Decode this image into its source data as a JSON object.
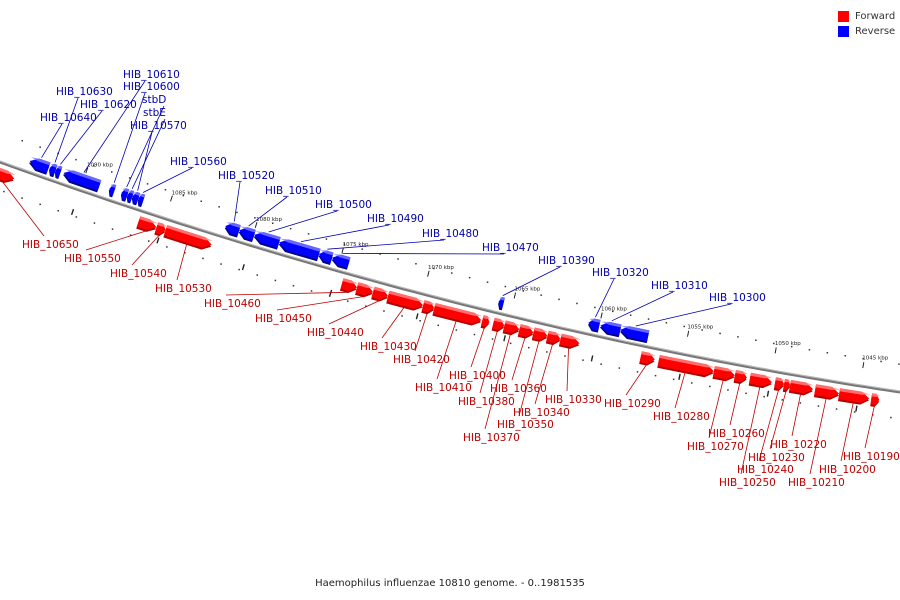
{
  "legend": {
    "forward_label": "Forward",
    "reverse_label": "Reverse",
    "forward_color": "#ff0000",
    "reverse_color": "#0000ff"
  },
  "caption": "Haemophilus influenzae 10810 genome. - 0..1981535",
  "colors": {
    "forward": "#ff0000",
    "forward_top": "#ff8888",
    "forward_dark": "#b30000",
    "reverse": "#0000ff",
    "reverse_top": "#7f7fff",
    "reverse_dark": "#00008c",
    "backbone": "#777777",
    "forward_label": "#bb0000",
    "reverse_label": "#0000aa"
  },
  "scale": {
    "unit": "kbp",
    "ticks": [
      "1090 kbp",
      "1085 kbp",
      "1080 kbp",
      "1075 kbp",
      "1070 kbp",
      "1065 kbp",
      "1060 kbp",
      "1055 kbp",
      "1050 kbp",
      "1045 kbp"
    ]
  },
  "reverse_genes": [
    "HIB_10640",
    "HIB_10630",
    "HIB_10620",
    "HIB_10610",
    "HIB_10600",
    "stbD",
    "stbE",
    "HIB_10570",
    "HIB_10560",
    "HIB_10520",
    "HIB_10510",
    "HIB_10500",
    "HIB_10490",
    "HIB_10480",
    "HIB_10470",
    "HIB_10390",
    "HIB_10320",
    "HIB_10310",
    "HIB_10300"
  ],
  "forward_genes": [
    "HIB_10650",
    "HIB_10550",
    "HIB_10540",
    "HIB_10530",
    "HIB_10460",
    "HIB_10450",
    "HIB_10440",
    "HIB_10430",
    "HIB_10420",
    "HIB_10410",
    "HIB_10400",
    "HIB_10380",
    "HIB_10370",
    "HIB_10360",
    "HIB_10350",
    "HIB_10340",
    "HIB_10330",
    "HIB_10290",
    "HIB_10280",
    "HIB_10270",
    "HIB_10260",
    "HIB_10250",
    "HIB_10240",
    "HIB_10230",
    "HIB_10220",
    "HIB_10210",
    "HIB_10200",
    "HIB_10190"
  ]
}
